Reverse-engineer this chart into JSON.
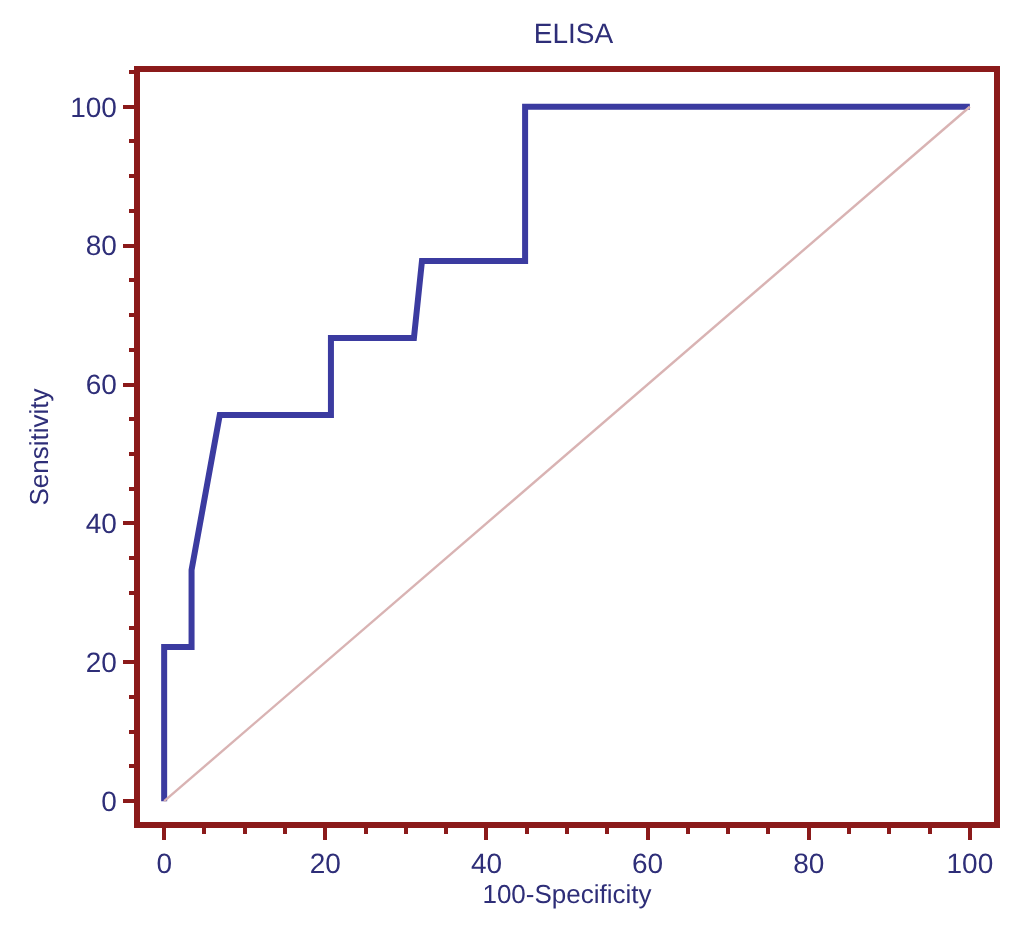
{
  "chart_data": {
    "type": "line",
    "title": "ELISA",
    "xlabel": "100-Specificity",
    "ylabel": "Sensitivity",
    "series": [
      {
        "color": "#3b3ba0",
        "x": [
          0,
          0,
          3.4,
          3.4,
          6.9,
          20.7,
          20.7,
          31,
          32,
          44.8,
          44.8,
          100
        ],
        "values": [
          0,
          22.2,
          22.2,
          33.3,
          55.6,
          55.6,
          66.7,
          66.7,
          77.8,
          77.8,
          100,
          100
        ]
      },
      {
        "color": "#d9b3b3",
        "x": [
          0,
          100
        ],
        "values": [
          0,
          100
        ]
      }
    ],
    "xlim": [
      -3,
      103
    ],
    "ylim": [
      -3,
      105
    ],
    "xticks": [
      0,
      20,
      40,
      60,
      80,
      100
    ],
    "yticks": [
      0,
      20,
      40,
      60,
      80,
      100
    ],
    "marker": "none",
    "line_style": "solid"
  }
}
